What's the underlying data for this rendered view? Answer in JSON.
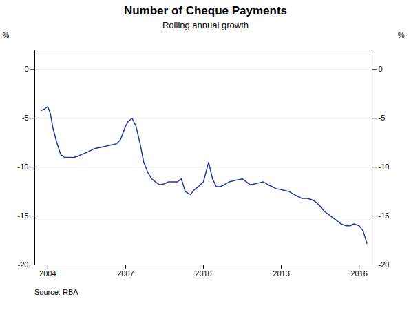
{
  "chart_data": {
    "type": "line",
    "title": "Number of Cheque Payments",
    "subtitle": "Rolling annual growth",
    "source": "Source:   RBA",
    "ylabel": "%",
    "y2label": "%",
    "x": [
      2003.75,
      2003.9,
      2004.0,
      2004.1,
      2004.2,
      2004.35,
      2004.5,
      2004.65,
      2004.8,
      2005.0,
      2005.15,
      2005.3,
      2005.5,
      2005.65,
      2005.8,
      2006.0,
      2006.15,
      2006.3,
      2006.5,
      2006.65,
      2006.8,
      2007.0,
      2007.1,
      2007.25,
      2007.4,
      2007.55,
      2007.7,
      2007.85,
      2008.0,
      2008.15,
      2008.3,
      2008.5,
      2008.65,
      2008.8,
      2009.0,
      2009.15,
      2009.3,
      2009.5,
      2009.65,
      2009.8,
      2010.0,
      2010.1,
      2010.2,
      2010.35,
      2010.5,
      2010.65,
      2010.8,
      2011.0,
      2011.15,
      2011.3,
      2011.5,
      2011.65,
      2011.8,
      2012.0,
      2012.15,
      2012.3,
      2012.5,
      2012.65,
      2012.8,
      2013.0,
      2013.15,
      2013.3,
      2013.5,
      2013.65,
      2013.8,
      2014.0,
      2014.15,
      2014.3,
      2014.5,
      2014.65,
      2014.8,
      2015.0,
      2015.15,
      2015.3,
      2015.5,
      2015.65,
      2015.8,
      2016.0,
      2016.15,
      2016.3
    ],
    "values": [
      -4.2,
      -4.0,
      -3.8,
      -4.5,
      -6.0,
      -7.5,
      -8.7,
      -9.0,
      -9.0,
      -9.0,
      -8.9,
      -8.7,
      -8.5,
      -8.3,
      -8.1,
      -8.0,
      -7.9,
      -7.8,
      -7.7,
      -7.6,
      -7.2,
      -5.8,
      -5.3,
      -5.0,
      -5.8,
      -7.5,
      -9.5,
      -10.5,
      -11.2,
      -11.5,
      -11.8,
      -11.7,
      -11.5,
      -11.5,
      -11.5,
      -11.2,
      -12.5,
      -12.8,
      -12.3,
      -12.0,
      -11.5,
      -10.5,
      -9.5,
      -11.2,
      -12.0,
      -12.0,
      -11.8,
      -11.5,
      -11.4,
      -11.3,
      -11.2,
      -11.5,
      -11.8,
      -11.7,
      -11.6,
      -11.5,
      -11.8,
      -12.0,
      -12.2,
      -12.3,
      -12.4,
      -12.5,
      -12.8,
      -13.0,
      -13.2,
      -13.2,
      -13.3,
      -13.5,
      -14.0,
      -14.5,
      -14.8,
      -15.2,
      -15.5,
      -15.8,
      -16.0,
      -16.0,
      -15.8,
      -16.0,
      -16.5,
      -17.8
    ],
    "color": "#2535a0",
    "xlim": [
      2003.5,
      2016.5
    ],
    "xticks": [
      2004,
      2007,
      2010,
      2013,
      2016
    ],
    "ylim": [
      -20,
      2
    ],
    "yticks": [
      -20,
      -15,
      -10,
      -5,
      0
    ],
    "y2lim": [
      -20,
      2
    ],
    "y2ticks": [
      -20,
      -15,
      -10,
      -5,
      0
    ],
    "grid": true
  }
}
